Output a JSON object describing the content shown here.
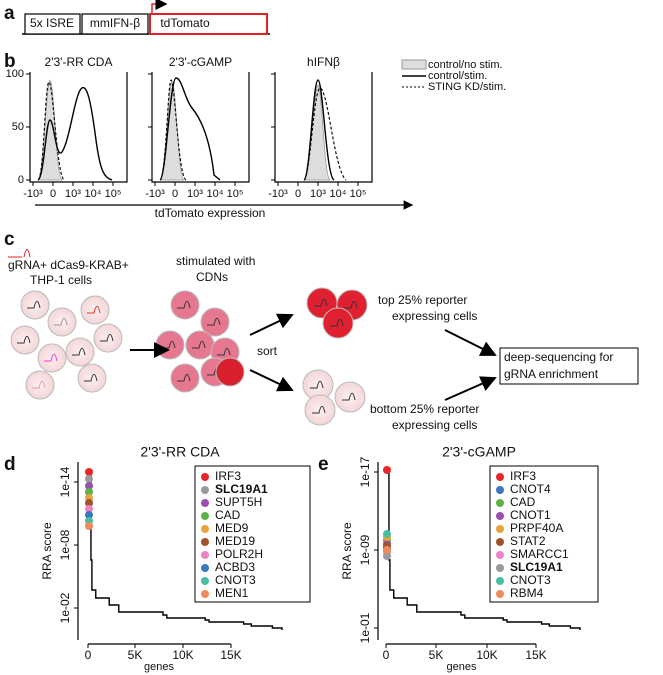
{
  "panel_a": {
    "label": "a",
    "boxes": [
      "5x ISRE",
      "mmIFN-β",
      "tdTomato"
    ]
  },
  "panel_b": {
    "label": "b",
    "plots": [
      {
        "title": "2'3'-RR CDA"
      },
      {
        "title": "2'3'-cGAMP"
      },
      {
        "title": "hIFNβ"
      }
    ],
    "yticks": [
      "100",
      "50",
      "0"
    ],
    "xticks": [
      "-10³",
      "0",
      "10³",
      "10⁴",
      "10⁵"
    ],
    "xlabel": "tdTomato expression",
    "legend": [
      "control/no stim.",
      "control/stim.",
      "STING KD/stim."
    ]
  },
  "panel_c": {
    "label": "c",
    "start": [
      "gRNA+ dCas9-KRAB+",
      "THP-1 cells"
    ],
    "stim": [
      "stimulated with",
      "CDNs"
    ],
    "sort": "sort",
    "top": [
      "top 25% reporter",
      "expressing cells"
    ],
    "bottom": [
      "bottom 25% reporter",
      "expressing cells"
    ],
    "result": [
      "deep-sequencing for",
      "gRNA enrichment"
    ]
  },
  "panel_d": {
    "label": "d",
    "title": "2'3'-RR CDA",
    "ylabel": "RRA score",
    "xlabel": "genes",
    "yticks": [
      "1e-14",
      "1e-08",
      "1e-02"
    ],
    "xticks": [
      "0",
      "5K",
      "10K",
      "15K"
    ],
    "legend": [
      {
        "name": "IRF3",
        "color": "#e8262a"
      },
      {
        "name": "SLC19A1",
        "color": "#9a9a9a",
        "bold": true
      },
      {
        "name": "SUPT5H",
        "color": "#9b4fb0"
      },
      {
        "name": "CAD",
        "color": "#5cb247"
      },
      {
        "name": "MED9",
        "color": "#e9a33a"
      },
      {
        "name": "MED19",
        "color": "#a0522d"
      },
      {
        "name": "POLR2H",
        "color": "#ee82c6"
      },
      {
        "name": "ACBD3",
        "color": "#3b78c2"
      },
      {
        "name": "CNOT3",
        "color": "#48c0a0"
      },
      {
        "name": "MEN1",
        "color": "#f08a5a"
      }
    ]
  },
  "panel_e": {
    "label": "e",
    "title": "2'3'-cGAMP",
    "ylabel": "RRA score",
    "xlabel": "genes",
    "yticks": [
      "1e-17",
      "1e-09",
      "1e-01"
    ],
    "xticks": [
      "0",
      "5K",
      "10K",
      "15K"
    ],
    "legend": [
      {
        "name": "IRF3",
        "color": "#e8262a"
      },
      {
        "name": "CNOT4",
        "color": "#3b78c2"
      },
      {
        "name": "CAD",
        "color": "#5cb247"
      },
      {
        "name": "CNOT1",
        "color": "#9b4fb0"
      },
      {
        "name": "PRPF40A",
        "color": "#e9a33a"
      },
      {
        "name": "STAT2",
        "color": "#a0522d"
      },
      {
        "name": "SMARCC1",
        "color": "#ee82c6"
      },
      {
        "name": "SLC19A1",
        "color": "#9a9a9a",
        "bold": true
      },
      {
        "name": "CNOT3",
        "color": "#48c0a0"
      },
      {
        "name": "RBM4",
        "color": "#f08a5a"
      }
    ]
  }
}
